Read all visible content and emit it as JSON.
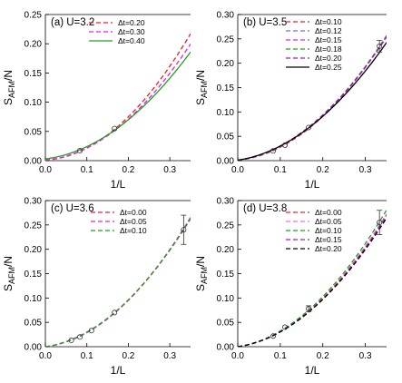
{
  "chart_data": [
    {
      "type": "line",
      "title": "(a) U=3.2",
      "xlabel": "1/L",
      "ylabel": "S_AFM/N",
      "xlim": [
        0,
        0.35
      ],
      "ylim": [
        0,
        0.25
      ],
      "xticks": [
        "0.0",
        "0.1",
        "0.2",
        "0.3"
      ],
      "yticks": [
        "0.00",
        "0.05",
        "0.10",
        "0.15",
        "0.20",
        "0.25"
      ],
      "legend_position": "top-left",
      "series": [
        {
          "name": "Δt=0.20",
          "color": "#e8202a",
          "dash": "dashed",
          "coef": [
            0.001,
            0.04,
            1.65
          ]
        },
        {
          "name": "Δt=0.30",
          "color": "#e020e0",
          "dash": "dashed",
          "coef": [
            0.001,
            0.06,
            1.45
          ]
        },
        {
          "name": "Δt=0.40",
          "color": "#20a020",
          "dash": "solid",
          "coef": [
            0.003,
            0.085,
            1.25
          ]
        }
      ],
      "points": [
        {
          "x": 0.0833,
          "y": 0.017
        },
        {
          "x": 0.1667,
          "y": 0.055
        }
      ]
    },
    {
      "type": "line",
      "title": "(b) U=3.5",
      "xlabel": "1/L",
      "ylabel": "S_AFM/N",
      "xlim": [
        0,
        0.35
      ],
      "ylim": [
        0,
        0.3
      ],
      "xticks": [
        "0.0",
        "0.1",
        "0.2",
        "0.3"
      ],
      "yticks": [
        "0.00",
        "0.05",
        "0.10",
        "0.15",
        "0.20",
        "0.25",
        "0.30"
      ],
      "legend_position": "top-right",
      "series": [
        {
          "name": "Δt=0.10",
          "color": "#e8202a",
          "dash": "dashed",
          "coef": [
            0.001,
            0.08,
            1.85
          ]
        },
        {
          "name": "Δt=0.12",
          "color": "#6b6bd8",
          "dash": "dashed",
          "coef": [
            0.001,
            0.09,
            1.83
          ]
        },
        {
          "name": "Δt=0.15",
          "color": "#e020e0",
          "dash": "dashed",
          "coef": [
            0.001,
            0.1,
            1.8
          ]
        },
        {
          "name": "Δt=0.18",
          "color": "#20a020",
          "dash": "dashed",
          "coef": [
            0.001,
            0.11,
            1.76
          ]
        },
        {
          "name": "Δt=0.20",
          "color": "#9020c0",
          "dash": "dashed",
          "coef": [
            0.001,
            0.12,
            1.72
          ]
        },
        {
          "name": "Δt=0.25",
          "color": "#000000",
          "dash": "solid",
          "coef": [
            0.001,
            0.13,
            1.6
          ]
        }
      ],
      "points": [
        {
          "x": 0.0833,
          "y": 0.02
        },
        {
          "x": 0.1111,
          "y": 0.032
        },
        {
          "x": 0.1667,
          "y": 0.068
        },
        {
          "x": 0.3333,
          "y": 0.235,
          "err": 0.012
        }
      ]
    },
    {
      "type": "line",
      "title": "(c) U=3.6",
      "xlabel": "1/L",
      "ylabel": "S_AFM/N",
      "xlim": [
        0,
        0.35
      ],
      "ylim": [
        0,
        0.3
      ],
      "xticks": [
        "0.0",
        "0.1",
        "0.2",
        "0.3"
      ],
      "yticks": [
        "0.00",
        "0.05",
        "0.10",
        "0.15",
        "0.20",
        "0.25",
        "0.30"
      ],
      "legend_position": "top-center",
      "series": [
        {
          "name": "Δt=0.00",
          "color": "#e8202a",
          "dash": "dashed",
          "coef": [
            0.0,
            0.11,
            1.85
          ]
        },
        {
          "name": "Δt=0.05",
          "color": "#e020e0",
          "dash": "dashed",
          "coef": [
            0.0,
            0.1,
            1.88
          ]
        },
        {
          "name": "Δt=0.10",
          "color": "#20a020",
          "dash": "dashed",
          "coef": [
            0.0,
            0.12,
            1.8
          ]
        }
      ],
      "points": [
        {
          "x": 0.0625,
          "y": 0.013
        },
        {
          "x": 0.0833,
          "y": 0.02
        },
        {
          "x": 0.1111,
          "y": 0.033
        },
        {
          "x": 0.1667,
          "y": 0.07
        },
        {
          "x": 0.3333,
          "y": 0.24,
          "err": 0.03
        }
      ]
    },
    {
      "type": "line",
      "title": "(d) U=3.8",
      "xlabel": "1/L",
      "ylabel": "S_AFM/N",
      "xlim": [
        0,
        0.35
      ],
      "ylim": [
        0,
        0.3
      ],
      "xticks": [
        "0.0",
        "0.1",
        "0.2",
        "0.3"
      ],
      "yticks": [
        "0.00",
        "0.05",
        "0.10",
        "0.15",
        "0.20",
        "0.25",
        "0.30"
      ],
      "legend_position": "top-right",
      "series": [
        {
          "name": "Δt=0.00",
          "color": "#e8202a",
          "dash": "dashed",
          "coef": [
            0.0,
            0.12,
            1.88
          ]
        },
        {
          "name": "Δt=0.05",
          "color": "#ff60ff",
          "dash": "dashed",
          "coef": [
            0.0,
            0.11,
            1.9
          ]
        },
        {
          "name": "Δt=0.10",
          "color": "#20a020",
          "dash": "dashed",
          "coef": [
            0.0,
            0.13,
            1.92
          ]
        },
        {
          "name": "Δt=0.15",
          "color": "#9020c0",
          "dash": "dashed",
          "coef": [
            0.0,
            0.12,
            1.85
          ]
        },
        {
          "name": "Δt=0.20",
          "color": "#000000",
          "dash": "dashed",
          "coef": [
            0.0,
            0.125,
            1.8
          ]
        }
      ],
      "points": [
        {
          "x": 0.0833,
          "y": 0.022
        },
        {
          "x": 0.1111,
          "y": 0.04
        },
        {
          "x": 0.1667,
          "y": 0.078,
          "err": 0.006
        },
        {
          "x": 0.3333,
          "y": 0.255,
          "err": 0.025
        }
      ]
    }
  ]
}
